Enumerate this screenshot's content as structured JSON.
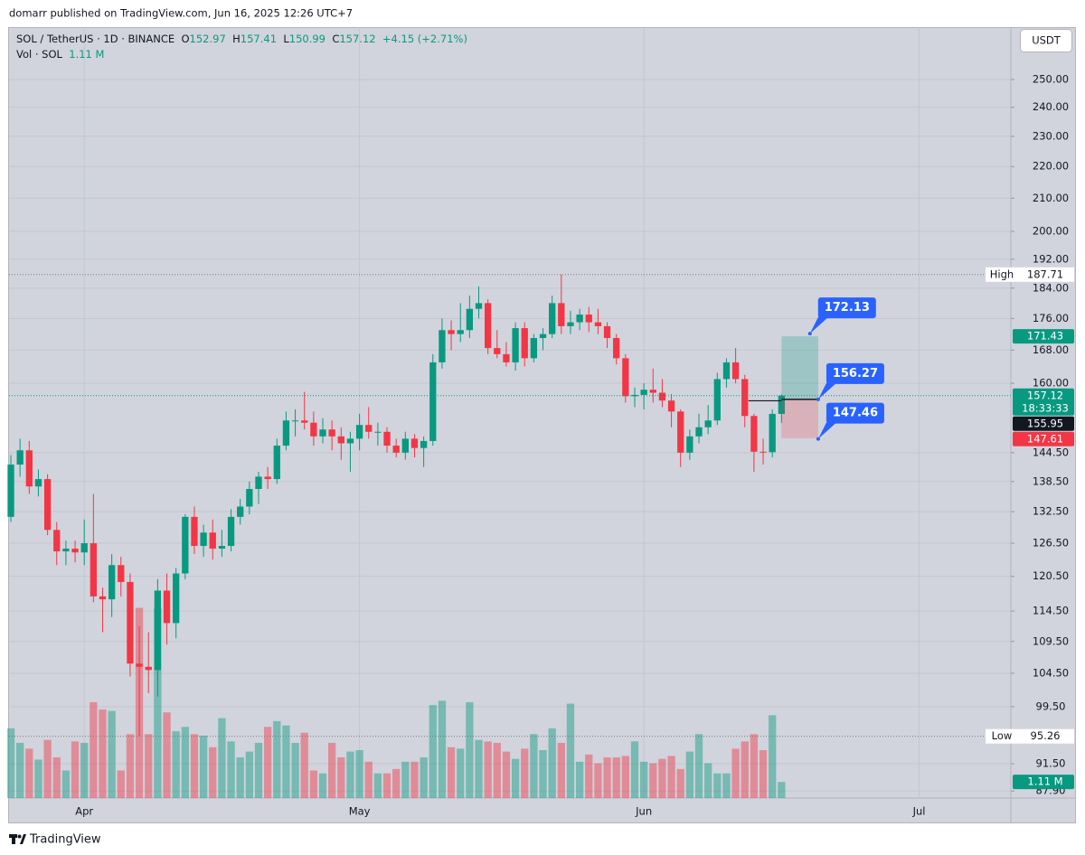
{
  "header": {
    "published": "domarr published on TradingView.com, Jun 16, 2025 12:26 UTC+7"
  },
  "footer": {
    "brand": "TradingView"
  },
  "chart_data": {
    "type": "candlestick",
    "title": "SOL / TetherUS · 1D · BINANCE",
    "legend": {
      "open_label": "O",
      "high_label": "H",
      "low_label": "L",
      "close_label": "C",
      "change": "+4.15 (+2.71%)",
      "volume_title": "Vol · SOL",
      "volume_last": "1.11 M"
    },
    "currency": "USDT",
    "x": [
      0,
      1,
      2,
      3,
      4,
      5,
      6,
      7,
      8,
      9,
      10,
      11,
      12,
      13,
      14,
      15,
      16,
      17,
      18,
      19,
      20,
      21,
      22,
      23,
      24,
      25,
      26,
      27,
      28,
      29,
      30,
      31,
      32,
      33,
      34,
      35,
      36,
      37,
      38,
      39,
      40,
      41,
      42,
      43,
      44,
      45,
      46,
      47,
      48,
      49,
      50,
      51,
      52,
      53,
      54,
      55,
      56,
      57,
      58,
      59,
      60,
      61,
      62,
      63,
      64,
      65,
      66,
      67,
      68,
      69,
      70,
      71,
      72,
      73,
      74,
      75,
      76,
      77,
      78,
      79,
      80,
      81,
      82,
      83,
      84
    ],
    "open": [
      131.5,
      142,
      145,
      137.5,
      139,
      129,
      125,
      125.5,
      124.8,
      126.5,
      117,
      116.5,
      122.5,
      119.5,
      106,
      105.5,
      105,
      118,
      112.5,
      121,
      131.5,
      126,
      128.5,
      125.5,
      126,
      131.5,
      133.5,
      137,
      139.5,
      139,
      146,
      151.5,
      151.5,
      151,
      148,
      149.5,
      148,
      146.5,
      147.5,
      150.5,
      149,
      149,
      146,
      144.5,
      147.5,
      145.5,
      147,
      165,
      173,
      172,
      173,
      178.5,
      180,
      168.5,
      167,
      165,
      173.5,
      166,
      171,
      172,
      180,
      174,
      175,
      177,
      175,
      174,
      171,
      166,
      157,
      157.3,
      158.5,
      157.8,
      156,
      153.5,
      144.5,
      148,
      150,
      151.5,
      161,
      165,
      161,
      152.5,
      144.7,
      144.6,
      152.97
    ],
    "high": [
      144,
      147.5,
      147,
      141,
      140,
      130.5,
      127,
      127,
      131,
      136,
      118.5,
      124.5,
      124,
      121,
      112,
      111,
      120,
      121,
      122,
      132,
      133.5,
      130,
      131,
      129,
      133,
      135,
      138.5,
      140.5,
      141.5,
      147.5,
      153.5,
      154,
      158,
      153.5,
      152,
      151.5,
      150,
      149,
      153,
      154.5,
      151,
      150,
      147.5,
      149,
      148.5,
      148,
      167,
      176,
      175.5,
      180,
      182,
      184.5,
      181,
      173,
      170,
      175,
      175,
      172,
      173.5,
      182,
      187.71,
      178,
      178.5,
      179,
      178.5,
      175,
      172,
      167,
      159,
      160,
      163.5,
      161,
      157.5,
      154,
      149.5,
      153,
      155,
      162.5,
      166,
      168.5,
      162,
      153,
      147.5,
      154,
      157.41
    ],
    "low": [
      130.5,
      139.5,
      136,
      135.5,
      128,
      122.5,
      122.5,
      123,
      122.5,
      116,
      111,
      113.5,
      117,
      104,
      95.26,
      101.5,
      101,
      109,
      110,
      120,
      124.5,
      124,
      123.5,
      124,
      125,
      130,
      132,
      134,
      137,
      138,
      145,
      148,
      149.5,
      146,
      146.5,
      145,
      143,
      140.5,
      145,
      147.5,
      146,
      144.5,
      143.5,
      143,
      143.5,
      141.5,
      146,
      163.5,
      168,
      170,
      171,
      176,
      167,
      166,
      164,
      163,
      164,
      165,
      168,
      171,
      172,
      172,
      173,
      172.5,
      172,
      168.5,
      164.5,
      155.5,
      154.5,
      154,
      155.5,
      154.5,
      150,
      141.5,
      143,
      146.5,
      148.5,
      150.5,
      159,
      160,
      150,
      140.5,
      142,
      143.5,
      150.99
    ],
    "close": [
      142,
      145,
      137.5,
      139,
      129,
      125,
      125.5,
      124.8,
      126.5,
      117,
      116.5,
      122.5,
      119.5,
      106,
      105.5,
      105,
      118,
      112.5,
      121,
      131.5,
      126,
      128.5,
      125.5,
      126,
      131.5,
      133.5,
      137,
      139.5,
      139,
      146,
      151.5,
      151.5,
      151,
      148,
      149.5,
      148,
      146.5,
      147.5,
      150.5,
      149,
      149,
      146,
      144.5,
      147.5,
      145.5,
      147,
      165,
      173,
      172,
      173,
      178.5,
      180,
      168.5,
      167,
      165,
      173.5,
      166,
      171,
      172,
      180,
      174,
      175,
      177,
      175,
      174,
      171,
      166,
      157,
      157.3,
      158.5,
      157.8,
      156,
      153.5,
      144.5,
      148,
      150,
      151.5,
      161,
      165,
      161,
      152.5,
      144.7,
      144.6,
      152.97,
      157.12
    ],
    "volume": [
      4.8,
      3.8,
      3.4,
      2.65,
      4.0,
      2.8,
      1.9,
      3.9,
      3.8,
      6.6,
      6.1,
      6.0,
      1.9,
      4.4,
      13.1,
      4.4,
      13.1,
      5.9,
      4.6,
      4.9,
      4.4,
      4.3,
      3.5,
      5.5,
      3.9,
      2.8,
      3.2,
      3.8,
      4.9,
      5.3,
      5.0,
      3.8,
      4.5,
      1.9,
      1.7,
      3.8,
      2.8,
      3.2,
      3.3,
      2.5,
      1.7,
      1.7,
      2.0,
      2.5,
      2.5,
      2.8,
      6.4,
      6.7,
      3.5,
      3.4,
      6.6,
      4.0,
      3.9,
      3.8,
      3.2,
      2.7,
      3.4,
      4.4,
      3.3,
      4.8,
      3.8,
      6.5,
      2.5,
      3.0,
      2.4,
      2.8,
      2.8,
      2.9,
      3.9,
      2.5,
      2.4,
      2.7,
      2.9,
      2.0,
      3.2,
      4.4,
      2.4,
      1.7,
      1.7,
      3.4,
      3.9,
      4.4,
      3.3,
      5.7,
      1.11
    ],
    "volume_ylim": [
      0,
      14.5
    ],
    "up_color": "#089981",
    "down_color": "#f23645",
    "log_scale": true,
    "ylim": [
      87,
      270
    ],
    "yticks": [
      {
        "value": 250,
        "label": "250.00"
      },
      {
        "value": 240,
        "label": "240.00"
      },
      {
        "value": 230,
        "label": "230.00"
      },
      {
        "value": 220,
        "label": "220.00"
      },
      {
        "value": 210,
        "label": "210.00"
      },
      {
        "value": 200,
        "label": "200.00"
      },
      {
        "value": 192,
        "label": "192.00"
      },
      {
        "value": 184,
        "label": "184.00"
      },
      {
        "value": 176,
        "label": "176.00"
      },
      {
        "value": 168,
        "label": "168.00"
      },
      {
        "value": 160,
        "label": "160.00"
      },
      {
        "value": 144.5,
        "label": "144.50"
      },
      {
        "value": 138.5,
        "label": "138.50"
      },
      {
        "value": 132.5,
        "label": "132.50"
      },
      {
        "value": 126.5,
        "label": "126.50"
      },
      {
        "value": 120.5,
        "label": "120.50"
      },
      {
        "value": 114.5,
        "label": "114.50"
      },
      {
        "value": 109.5,
        "label": "109.50"
      },
      {
        "value": 104.5,
        "label": "104.50"
      },
      {
        "value": 99.5,
        "label": "99.50"
      },
      {
        "value": 91.5,
        "label": "91.50"
      },
      {
        "value": 87.9,
        "label": "87.90"
      }
    ],
    "xlim": [
      -0.2,
      109
    ],
    "xticks": [
      {
        "value": 8,
        "label": "Apr"
      },
      {
        "value": 38,
        "label": "May"
      },
      {
        "value": 69,
        "label": "Jun"
      },
      {
        "value": 99,
        "label": "Jul"
      }
    ],
    "grid": true,
    "high_marker": {
      "label": "High",
      "value": 187.71
    },
    "low_marker": {
      "label": "Low",
      "value": 95.26
    },
    "countdown": "18:33:33",
    "price_tags": [
      {
        "value": 171.43,
        "color": "#089981"
      },
      {
        "value": 155.95,
        "color": "#131722"
      },
      {
        "value": 147.61,
        "color": "#f23645"
      }
    ],
    "position": {
      "target": 172.13,
      "entry": 156.27,
      "stop": 147.46,
      "color": "#2962ff"
    }
  }
}
